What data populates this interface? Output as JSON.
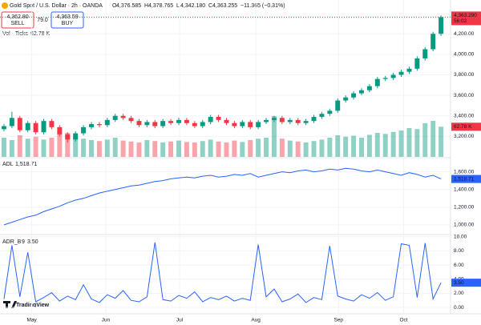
{
  "chart_data": {
    "type": "candlestick",
    "title": "Gold Spot / U.S. Dollar · 2h · OANDA",
    "ohlc_letters": [
      "O",
      "H",
      "L",
      "C"
    ],
    "ohlc_values": [
      "4,376.585",
      "4,378.765",
      "4,342.180",
      "4,363.255"
    ],
    "change": "−11.365 (−0.31%)",
    "sell": {
      "price": "4,362.80",
      "label": "SELL"
    },
    "spread": "79.0",
    "buy": {
      "price": "4,363.59",
      "label": "BUY"
    },
    "last_price": {
      "label": "4,363.290",
      "countdown": "56:02"
    },
    "logo": "TradingView",
    "up_color": "#089981",
    "down_color": "#f23645",
    "xlim": [
      -0.5,
      56.2
    ],
    "xticks": [
      {
        "value": 3.5,
        "label": "May"
      },
      {
        "value": 12.8,
        "label": "Jun"
      },
      {
        "value": 22.1,
        "label": "Jul"
      },
      {
        "value": 31.7,
        "label": "Aug"
      },
      {
        "value": 42.1,
        "label": "Sep"
      },
      {
        "value": 50.3,
        "label": "Oct"
      }
    ],
    "ylim": [
      3000,
      4530
    ],
    "yticks": [
      {
        "value": 3200,
        "label": "3,200.00"
      },
      {
        "value": 3400,
        "label": "3,400.00"
      },
      {
        "value": 3600,
        "label": "3,600.00"
      },
      {
        "value": 3800,
        "label": "3,800.00"
      },
      {
        "value": 4000,
        "label": "4,000.00"
      },
      {
        "value": 4200,
        "label": "4,200.00"
      }
    ],
    "open": [
      3270,
      3300,
      3380,
      3260,
      3330,
      3240,
      3350,
      3290,
      3220,
      3170,
      3230,
      3290,
      3320,
      3310,
      3360,
      3400,
      3380,
      3350,
      3310,
      3340,
      3300,
      3350,
      3330,
      3360,
      3330,
      3300,
      3340,
      3390,
      3360,
      3330,
      3300,
      3340,
      3290,
      3340,
      3360,
      3380,
      3340,
      3360,
      3330,
      3350,
      3390,
      3420,
      3450,
      3550,
      3580,
      3620,
      3650,
      3690,
      3760,
      3770,
      3800,
      3830,
      3860,
      3960,
      4050,
      4200
    ],
    "high": [
      3320,
      3440,
      3400,
      3350,
      3350,
      3370,
      3370,
      3310,
      3240,
      3250,
      3310,
      3340,
      3340,
      3380,
      3420,
      3420,
      3400,
      3370,
      3360,
      3360,
      3370,
      3370,
      3380,
      3380,
      3350,
      3360,
      3410,
      3410,
      3380,
      3350,
      3360,
      3360,
      3360,
      3380,
      3400,
      3400,
      3380,
      3380,
      3370,
      3410,
      3440,
      3470,
      3570,
      3600,
      3640,
      3670,
      3710,
      3780,
      3790,
      3820,
      3850,
      3880,
      3980,
      4070,
      4220,
      4380
    ],
    "low": [
      3250,
      3280,
      3240,
      3240,
      3220,
      3220,
      3270,
      3200,
      3140,
      3150,
      3210,
      3270,
      3290,
      3290,
      3340,
      3360,
      3330,
      3290,
      3290,
      3280,
      3280,
      3310,
      3310,
      3310,
      3280,
      3280,
      3320,
      3340,
      3310,
      3280,
      3280,
      3270,
      3270,
      3320,
      3340,
      3320,
      3320,
      3310,
      3310,
      3330,
      3370,
      3400,
      3430,
      3530,
      3560,
      3600,
      3630,
      3670,
      3740,
      3750,
      3780,
      3810,
      3840,
      3940,
      4030,
      4180
    ],
    "close": [
      3300,
      3380,
      3260,
      3330,
      3240,
      3350,
      3290,
      3220,
      3170,
      3230,
      3290,
      3320,
      3310,
      3360,
      3400,
      3380,
      3350,
      3310,
      3340,
      3300,
      3350,
      3330,
      3360,
      3330,
      3300,
      3340,
      3390,
      3360,
      3330,
      3300,
      3340,
      3290,
      3340,
      3360,
      3380,
      3340,
      3360,
      3330,
      3350,
      3390,
      3420,
      3450,
      3550,
      3580,
      3620,
      3650,
      3690,
      3760,
      3770,
      3800,
      3830,
      3860,
      3960,
      4050,
      4200,
      4363
    ],
    "volume": {
      "name": "Vol · Ticks",
      "label": "62.78 K",
      "ylim": [
        0,
        110
      ],
      "values": [
        40,
        35,
        45,
        38,
        42,
        36,
        40,
        48,
        50,
        42,
        38,
        35,
        33,
        36,
        40,
        34,
        32,
        30,
        35,
        33,
        30,
        32,
        34,
        31,
        30,
        33,
        36,
        32,
        30,
        34,
        31,
        35,
        38,
        40,
        85,
        38,
        34,
        32,
        30,
        33,
        36,
        40,
        45,
        42,
        44,
        40,
        46,
        50,
        48,
        52,
        55,
        60,
        58,
        70,
        75,
        62.78
      ]
    },
    "adl": {
      "name": "ADL",
      "label": "1,518.71",
      "color": "#2962ff",
      "ylim": [
        900,
        1750
      ],
      "yticks": [
        {
          "value": 1000,
          "label": "1,000.00"
        },
        {
          "value": 1200,
          "label": "1,200.00"
        },
        {
          "value": 1400,
          "label": "1,400.00"
        },
        {
          "value": 1600,
          "label": "1,600.00"
        }
      ],
      "values": [
        1000,
        1030,
        1060,
        1090,
        1110,
        1150,
        1180,
        1210,
        1250,
        1280,
        1300,
        1330,
        1360,
        1380,
        1400,
        1420,
        1440,
        1450,
        1470,
        1490,
        1500,
        1520,
        1530,
        1540,
        1530,
        1550,
        1560,
        1540,
        1550,
        1570,
        1560,
        1580,
        1540,
        1560,
        1580,
        1600,
        1590,
        1610,
        1620,
        1600,
        1610,
        1630,
        1620,
        1640,
        1630,
        1610,
        1600,
        1620,
        1600,
        1580,
        1560,
        1590,
        1570,
        1540,
        1560,
        1518.71
      ]
    },
    "adr": {
      "name": "ADR_B",
      "length": "9",
      "label": "3.50",
      "color": "#2962ff",
      "ylim": [
        -0.9,
        10.2
      ],
      "yticks": [
        {
          "value": 0,
          "label": "0.00"
        },
        {
          "value": 2,
          "label": "2.00"
        },
        {
          "value": 4,
          "label": "4.00"
        },
        {
          "value": 6,
          "label": "6.00"
        },
        {
          "value": 8,
          "label": "8.00"
        },
        {
          "value": 10,
          "label": "10.00"
        }
      ],
      "values": [
        1.2,
        8.8,
        1.5,
        7.8,
        0.8,
        1.4,
        2.1,
        0.9,
        1.6,
        1.1,
        3.2,
        1.2,
        0.7,
        1.8,
        1.3,
        2.4,
        1.0,
        0.8,
        1.5,
        9.2,
        1.1,
        0.9,
        1.7,
        1.3,
        2.2,
        0.8,
        1.4,
        1.1,
        1.6,
        0.9,
        1.3,
        1.0,
        8.9,
        1.5,
        2.6,
        0.8,
        1.2,
        1.9,
        0.7,
        1.4,
        1.1,
        8.7,
        1.6,
        1.2,
        0.9,
        1.8,
        1.3,
        2.1,
        1.0,
        1.5,
        9.0,
        8.8,
        1.4,
        9.1,
        1.2,
        3.5
      ]
    }
  }
}
